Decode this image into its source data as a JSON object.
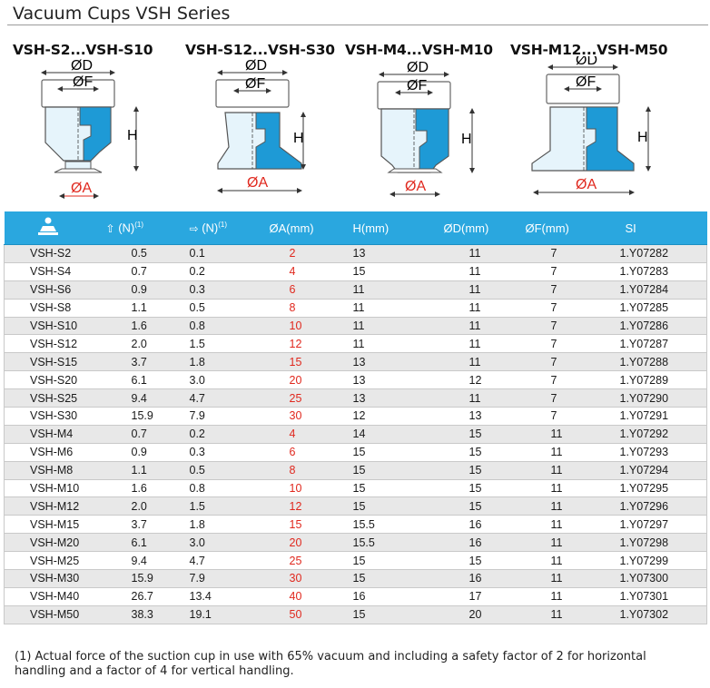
{
  "title": "Vacuum Cups VSH Series",
  "series_heads": [
    "VSH-S2...VSH-S10",
    "VSH-S12...VSH-S30",
    "VSH-M4...VSH-M10",
    "VSH-M12...VSH-M50"
  ],
  "dimension_labels": {
    "d": "ØD",
    "f": "ØF",
    "h": "H",
    "a": "ØA"
  },
  "colors": {
    "header_bg": "#2aa7df",
    "cup_blue": "#1e9ad6",
    "cup_light": "#e6f4fb",
    "accent_red": "#e0281e"
  },
  "table": {
    "headers": {
      "icon": "vacuum-cup-icon",
      "force_h": "(N)",
      "force_h_note": "(1)",
      "force_v": "(N)",
      "force_v_note": "(1)",
      "a": "ØA(mm)",
      "h": "H(mm)",
      "d": "ØD(mm)",
      "f": "ØF(mm)",
      "si": "SI"
    },
    "rows": [
      {
        "model": "VSH-S2",
        "fh": "0.5",
        "fv": "0.1",
        "a": "2",
        "h": "13",
        "d": "11",
        "f": "7",
        "si": "1.Y07282"
      },
      {
        "model": "VSH-S4",
        "fh": "0.7",
        "fv": "0.2",
        "a": "4",
        "h": "15",
        "d": "11",
        "f": "7",
        "si": "1.Y07283"
      },
      {
        "model": "VSH-S6",
        "fh": "0.9",
        "fv": "0.3",
        "a": "6",
        "h": "11",
        "d": "11",
        "f": "7",
        "si": "1.Y07284"
      },
      {
        "model": "VSH-S8",
        "fh": "1.1",
        "fv": "0.5",
        "a": "8",
        "h": "11",
        "d": "11",
        "f": "7",
        "si": "1.Y07285"
      },
      {
        "model": "VSH-S10",
        "fh": "1.6",
        "fv": "0.8",
        "a": "10",
        "h": "11",
        "d": "11",
        "f": "7",
        "si": "1.Y07286"
      },
      {
        "model": "VSH-S12",
        "fh": "2.0",
        "fv": "1.5",
        "a": "12",
        "h": "11",
        "d": "11",
        "f": "7",
        "si": "1.Y07287"
      },
      {
        "model": "VSH-S15",
        "fh": "3.7",
        "fv": "1.8",
        "a": "15",
        "h": "13",
        "d": "11",
        "f": "7",
        "si": "1.Y07288"
      },
      {
        "model": "VSH-S20",
        "fh": "6.1",
        "fv": "3.0",
        "a": "20",
        "h": "13",
        "d": "12",
        "f": "7",
        "si": "1.Y07289"
      },
      {
        "model": "VSH-S25",
        "fh": "9.4",
        "fv": "4.7",
        "a": "25",
        "h": "13",
        "d": "11",
        "f": "7",
        "si": "1.Y07290"
      },
      {
        "model": "VSH-S30",
        "fh": "15.9",
        "fv": "7.9",
        "a": "30",
        "h": "12",
        "d": "13",
        "f": "7",
        "si": "1.Y07291"
      },
      {
        "model": "VSH-M4",
        "fh": "0.7",
        "fv": "0.2",
        "a": "4",
        "h": "14",
        "d": "15",
        "f": "11",
        "si": "1.Y07292"
      },
      {
        "model": "VSH-M6",
        "fh": "0.9",
        "fv": "0.3",
        "a": "6",
        "h": "15",
        "d": "15",
        "f": "11",
        "si": "1.Y07293"
      },
      {
        "model": "VSH-M8",
        "fh": "1.1",
        "fv": "0.5",
        "a": "8",
        "h": "15",
        "d": "15",
        "f": "11",
        "si": "1.Y07294"
      },
      {
        "model": "VSH-M10",
        "fh": "1.6",
        "fv": "0.8",
        "a": "10",
        "h": "15",
        "d": "15",
        "f": "11",
        "si": "1.Y07295"
      },
      {
        "model": "VSH-M12",
        "fh": "2.0",
        "fv": "1.5",
        "a": "12",
        "h": "15",
        "d": "15",
        "f": "11",
        "si": "1.Y07296"
      },
      {
        "model": "VSH-M15",
        "fh": "3.7",
        "fv": "1.8",
        "a": "15",
        "h": "15.5",
        "d": "16",
        "f": "11",
        "si": "1.Y07297"
      },
      {
        "model": "VSH-M20",
        "fh": "6.1",
        "fv": "3.0",
        "a": "20",
        "h": "15.5",
        "d": "16",
        "f": "11",
        "si": "1.Y07298"
      },
      {
        "model": "VSH-M25",
        "fh": "9.4",
        "fv": "4.7",
        "a": "25",
        "h": "15",
        "d": "15",
        "f": "11",
        "si": "1.Y07299"
      },
      {
        "model": "VSH-M30",
        "fh": "15.9",
        "fv": "7.9",
        "a": "30",
        "h": "15",
        "d": "16",
        "f": "11",
        "si": "1.Y07300"
      },
      {
        "model": "VSH-M40",
        "fh": "26.7",
        "fv": "13.4",
        "a": "40",
        "h": "16",
        "d": "17",
        "f": "11",
        "si": "1.Y07301"
      },
      {
        "model": "VSH-M50",
        "fh": "38.3",
        "fv": "19.1",
        "a": "50",
        "h": "15",
        "d": "20",
        "f": "11",
        "si": "1.Y07302"
      }
    ]
  },
  "footnote": "(1) Actual force of the suction cup in use with 65% vacuum and including a safety factor of 2 for horizontal handling and a factor of 4 for vertical handling."
}
